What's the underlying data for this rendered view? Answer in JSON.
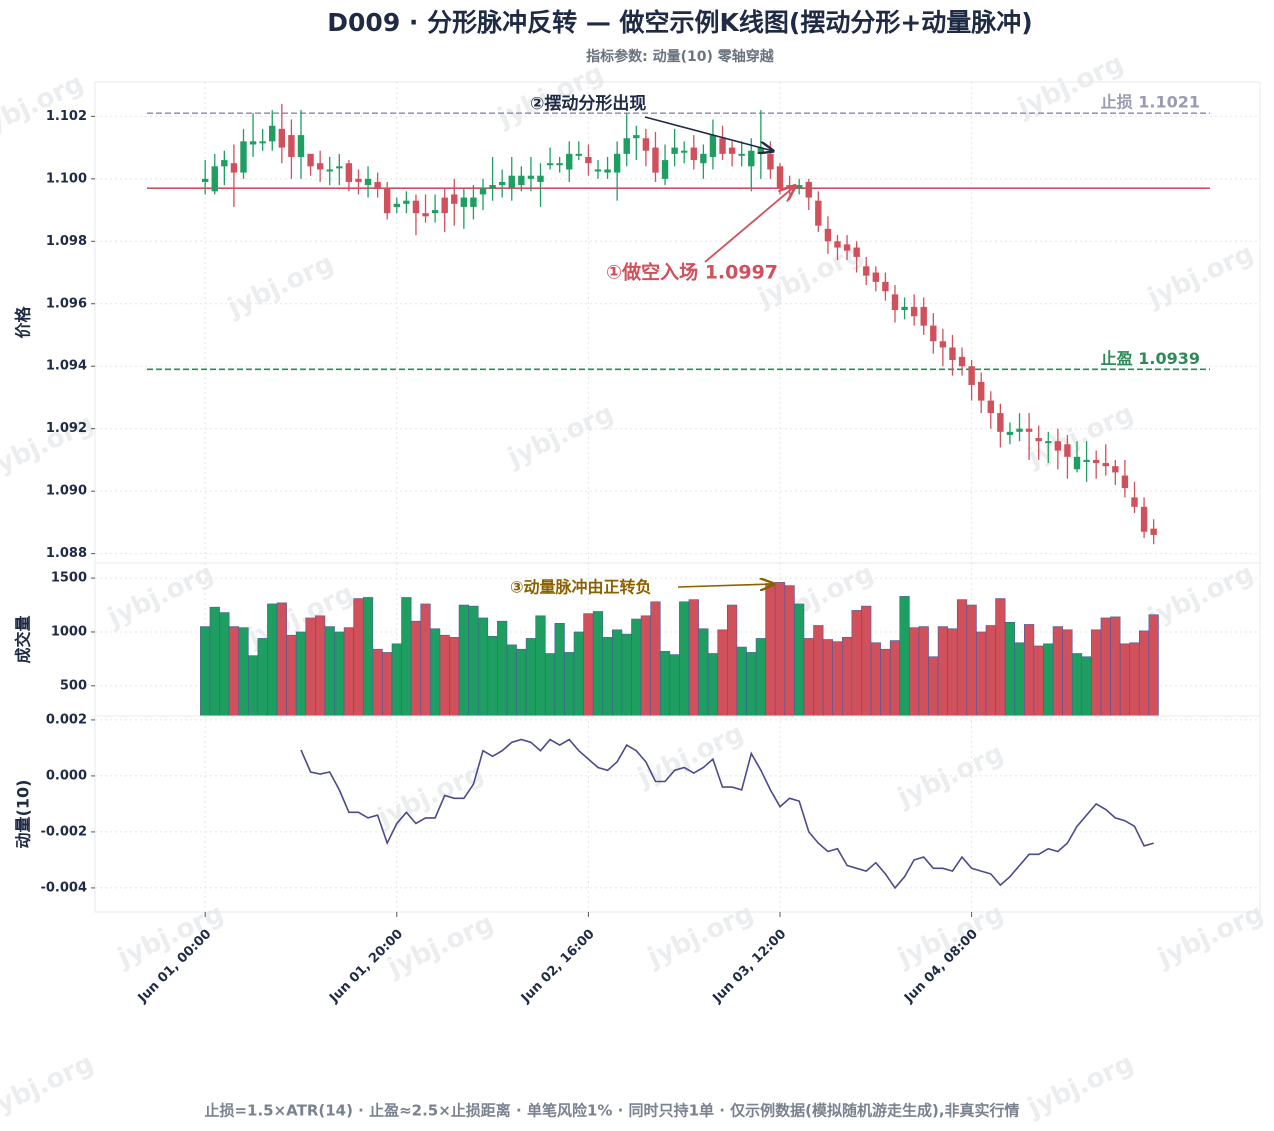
{
  "title": "D009 · 分形脉冲反转 — 做空示例K线图(摆动分形+动量脉冲)",
  "subtitle": "指标参数: 动量(10) 零轴穿越",
  "footer": "止损=1.5×ATR(14) · 止盈≈2.5×止损距离 · 单笔风险1% · 同时只持1单 · 仅示例数据(模拟随机游走生成),非真实行情",
  "watermark": "jybj.org",
  "chart_data": [
    {
      "type": "candlestick",
      "ylabel": "价格",
      "up_color": "#1e9e61",
      "down_color": "#d0505c",
      "grid": true,
      "xlim": [
        -11.5,
        110.1
      ],
      "ylim": [
        1.0877,
        1.1031
      ],
      "yticks": [
        1.088,
        {
          "value": 1.09,
          "label": "1.090"
        },
        1.092,
        1.094,
        1.096,
        1.098,
        {
          "value": 1.1,
          "label": "1.100"
        },
        1.102
      ],
      "open": [
        1.0999,
        1.0996,
        1.1004,
        1.1005,
        1.1002,
        1.1011,
        1.1012,
        1.1012,
        1.1016,
        1.1014,
        1.1007,
        1.1008,
        1.1005,
        1.1003,
        1.1004,
        1.1005,
        1.1,
        1.0998,
        1.0999,
        1.0997,
        1.0991,
        1.0992,
        1.0993,
        1.0989,
        1.0989,
        1.0994,
        1.0995,
        1.0991,
        1.0991,
        1.0995,
        1.0997,
        1.0998,
        1.0997,
        1.0998,
        1.1,
        1.0999,
        1.1005,
        1.1005,
        1.1003,
        1.1008,
        1.1007,
        1.1003,
        1.1002,
        1.1002,
        1.1008,
        1.1013,
        1.1013,
        1.101,
        1.1,
        1.1008,
        1.1009,
        1.101,
        1.1005,
        1.1007,
        1.1013,
        1.101,
        1.1008,
        1.1004,
        1.1008,
        1.1008,
        1.1004,
        1.0998,
        1.0997,
        1.0999,
        1.0993,
        1.0984,
        1.098,
        1.0979,
        1.0978,
        1.0972,
        1.097,
        1.0967,
        1.0963,
        1.0958,
        1.0959,
        1.0959,
        1.0953,
        1.0948,
        1.0946,
        1.0943,
        1.094,
        1.0935,
        1.0929,
        1.0925,
        1.0918,
        1.0919,
        1.092,
        1.0917,
        1.0916,
        1.0916,
        1.0915,
        1.0907,
        1.091,
        1.091,
        1.0909,
        1.0908,
        1.0905,
        1.0898,
        1.0895,
        1.0888
      ],
      "high": [
        1.1006,
        1.1008,
        1.1009,
        1.1011,
        1.1016,
        1.1021,
        1.1016,
        1.1022,
        1.1024,
        1.1019,
        1.1022,
        1.1008,
        1.1009,
        1.1007,
        1.1008,
        1.1006,
        1.1003,
        1.1004,
        1.1002,
        1.0999,
        1.0994,
        1.0996,
        1.0995,
        1.0995,
        1.0995,
        1.0997,
        1.1,
        1.0997,
        1.0998,
        1.1,
        1.1007,
        1.1003,
        1.1007,
        1.1004,
        1.1007,
        1.1005,
        1.101,
        1.1007,
        1.1012,
        1.1012,
        1.1011,
        1.1006,
        1.1007,
        1.1012,
        1.1021,
        1.1017,
        1.1016,
        1.1015,
        1.1011,
        1.1016,
        1.1012,
        1.1014,
        1.1011,
        1.1019,
        1.1017,
        1.1012,
        1.1012,
        1.1013,
        1.1022,
        1.1012,
        1.1005,
        1.1001,
        1.1,
        1.1,
        1.0996,
        1.0988,
        1.0982,
        1.0982,
        1.098,
        1.0975,
        1.0972,
        1.097,
        1.0966,
        1.0962,
        1.0963,
        1.0962,
        1.0957,
        1.0952,
        1.095,
        1.0946,
        1.0942,
        1.0938,
        1.0932,
        1.0928,
        1.0922,
        1.0925,
        1.0925,
        1.0921,
        1.0919,
        1.092,
        1.0918,
        1.0916,
        1.0916,
        1.0913,
        1.0915,
        1.091,
        1.091,
        1.0903,
        1.0898,
        1.0891
      ],
      "low": [
        1.0995,
        1.0995,
        1.0998,
        1.0991,
        1.1,
        1.1007,
        1.1009,
        1.1009,
        1.1005,
        1.1,
        1.1,
        1.1001,
        1.0999,
        1.0998,
        1.0998,
        1.0996,
        1.0995,
        1.0994,
        1.0994,
        1.0987,
        1.0989,
        1.0989,
        1.0982,
        1.0986,
        1.0986,
        1.0983,
        1.0985,
        1.0984,
        1.0987,
        1.099,
        1.0993,
        1.0994,
        1.0993,
        1.0996,
        1.0996,
        1.0991,
        1.1003,
        1.1002,
        1.0999,
        1.1006,
        1.1001,
        1.1,
        1.1,
        1.0993,
        1.1004,
        1.1006,
        1.1004,
        1.0999,
        1.0998,
        1.1004,
        1.1005,
        1.1003,
        1.1,
        1.1003,
        1.1006,
        1.1004,
        1.1004,
        1.0996,
        1.1,
        1.1,
        1.0995,
        1.0995,
        1.0995,
        1.099,
        1.0983,
        1.0976,
        1.0974,
        1.0974,
        1.097,
        1.0966,
        1.0964,
        1.0961,
        1.0954,
        1.0955,
        1.0953,
        1.095,
        1.0944,
        1.094,
        1.0937,
        1.0937,
        1.0929,
        1.0925,
        1.092,
        1.0914,
        1.0915,
        1.0916,
        1.091,
        1.091,
        1.0909,
        1.0907,
        1.0904,
        1.0906,
        1.0903,
        1.0904,
        1.0905,
        1.0902,
        1.0898,
        1.0893,
        1.0885,
        1.0883
      ],
      "close": [
        1.1,
        1.1004,
        1.1006,
        1.1002,
        1.1012,
        1.1012,
        1.1012,
        1.1017,
        1.101,
        1.1007,
        1.1014,
        1.1004,
        1.1003,
        1.1003,
        1.1004,
        1.0999,
        1.0999,
        1.1,
        1.0997,
        1.0989,
        1.0992,
        1.0993,
        1.0989,
        1.0988,
        1.099,
        1.0989,
        1.0992,
        1.0994,
        1.0994,
        1.0997,
        1.0998,
        1.0999,
        1.1001,
        1.1001,
        1.1001,
        1.1001,
        1.1005,
        1.1005,
        1.1008,
        1.1008,
        1.1005,
        1.1003,
        1.1003,
        1.1008,
        1.1013,
        1.1014,
        1.1009,
        1.1002,
        1.1006,
        1.101,
        1.1009,
        1.1006,
        1.1008,
        1.1014,
        1.1008,
        1.1008,
        1.1008,
        1.1009,
        1.101,
        1.1003,
        1.0997,
        1.0997,
        1.0998,
        1.0994,
        1.0985,
        1.098,
        1.0978,
        1.0977,
        1.0975,
        1.0969,
        1.0967,
        1.0964,
        1.0958,
        1.0959,
        1.0956,
        1.0953,
        1.0948,
        1.0946,
        1.0942,
        1.094,
        1.0934,
        1.0929,
        1.0925,
        1.0919,
        1.0919,
        1.092,
        1.0919,
        1.0916,
        1.0916,
        1.0913,
        1.0911,
        1.0911,
        1.091,
        1.0909,
        1.0908,
        1.0906,
        1.0901,
        1.0895,
        1.0887,
        1.0886
      ],
      "lines": [
        {
          "label": "止损 1.1021",
          "value": 1.1021,
          "color": "#9a9ab4",
          "style": "dashed"
        },
        {
          "label": "止盈 1.0939",
          "value": 1.0939,
          "color": "#2e8b57",
          "style": "dashed"
        },
        {
          "value": 1.0997,
          "color": "#d0505c",
          "style": "solid"
        }
      ],
      "annotations": [
        {
          "text": "②摆动分形出现",
          "color": "#1f2a44"
        },
        {
          "text": "①做空入场 1.0997",
          "color": "#d0505c"
        }
      ]
    },
    {
      "type": "bar",
      "ylabel": "成交量",
      "up_color": "#1e9e61",
      "down_color": "#d0505c",
      "grid": true,
      "xlim": [
        -11.5,
        110.1
      ],
      "ylim": [
        220,
        1640
      ],
      "yticks": [
        500,
        1000,
        1500
      ],
      "values": [
        1050,
        1230,
        1180,
        1050,
        1040,
        780,
        940,
        1260,
        1270,
        970,
        1000,
        1130,
        1150,
        1050,
        1000,
        1040,
        1310,
        1320,
        840,
        810,
        890,
        1320,
        1100,
        1260,
        1030,
        970,
        950,
        1250,
        1240,
        1130,
        960,
        1100,
        880,
        840,
        940,
        1150,
        800,
        1080,
        810,
        1000,
        1170,
        1190,
        950,
        1020,
        980,
        1120,
        1150,
        1280,
        820,
        790,
        1280,
        1300,
        1030,
        800,
        1020,
        1250,
        860,
        810,
        940,
        1450,
        1460,
        1430,
        1260,
        940,
        1060,
        930,
        910,
        950,
        1200,
        1240,
        900,
        840,
        920,
        1330,
        1040,
        1050,
        770,
        1050,
        1030,
        1300,
        1250,
        1000,
        1060,
        1310,
        1090,
        900,
        1070,
        870,
        890,
        1050,
        1020,
        800,
        770,
        1020,
        1130,
        1140,
        890,
        900,
        1010,
        1160
      ],
      "annotations": [
        {
          "text": "③动量脉冲由正转负",
          "color": "#8a6100"
        }
      ]
    },
    {
      "type": "line",
      "ylabel": "动量(10)",
      "color": "#4b4a8c",
      "grid": true,
      "xlim": [
        -11.5,
        110.1
      ],
      "ylim": [
        -0.00486,
        0.00214
      ],
      "yticks": [
        -0.004,
        -0.002,
        {
          "value": 0,
          "label": "0.000"
        },
        0.002
      ],
      "xticks": [
        {
          "value": 0,
          "label": "Jun 01, 00:00"
        },
        {
          "value": 20,
          "label": "Jun 01, 20:00"
        },
        {
          "value": 40,
          "label": "Jun 02, 16:00"
        },
        {
          "value": 60,
          "label": "Jun 03, 12:00"
        },
        {
          "value": 80,
          "label": "Jun 04, 08:00"
        }
      ],
      "values": [
        null,
        null,
        null,
        null,
        null,
        null,
        null,
        null,
        null,
        null,
        0.00093,
        0.00014,
        7e-05,
        0.00014,
        -0.0005,
        -0.0013,
        -0.0013,
        -0.0015,
        -0.0014,
        -0.0024,
        -0.0017,
        -0.0013,
        -0.0017,
        -0.0015,
        -0.0015,
        -0.0007,
        -0.0008,
        -0.0008,
        -0.0003,
        0.0009,
        0.0007,
        0.0009,
        0.0012,
        0.0013,
        0.0012,
        0.0009,
        0.0013,
        0.0011,
        0.0013,
        0.0009,
        0.0006,
        0.0003,
        0.0002,
        0.0005,
        0.0011,
        0.0009,
        0.0005,
        -0.0002,
        -0.0002,
        0.0002,
        0.0003,
        0.0001,
        0.0003,
        0.0006,
        -0.0004,
        -0.0004,
        -0.0005,
        0.0008,
        0.0002,
        -0.0005,
        -0.0011,
        -0.0008,
        -0.0009,
        -0.002,
        -0.0024,
        -0.0027,
        -0.0026,
        -0.0032,
        -0.0033,
        -0.0034,
        -0.0031,
        -0.0035,
        -0.004,
        -0.0036,
        -0.003,
        -0.0029,
        -0.0033,
        -0.0033,
        -0.0034,
        -0.0029,
        -0.0033,
        -0.0034,
        -0.0035,
        -0.0039,
        -0.0036,
        -0.0032,
        -0.0028,
        -0.0028,
        -0.0026,
        -0.0027,
        -0.0024,
        -0.0018,
        -0.0014,
        -0.001,
        -0.0012,
        -0.0015,
        -0.0016,
        -0.0018,
        -0.0025,
        -0.0024
      ]
    }
  ]
}
